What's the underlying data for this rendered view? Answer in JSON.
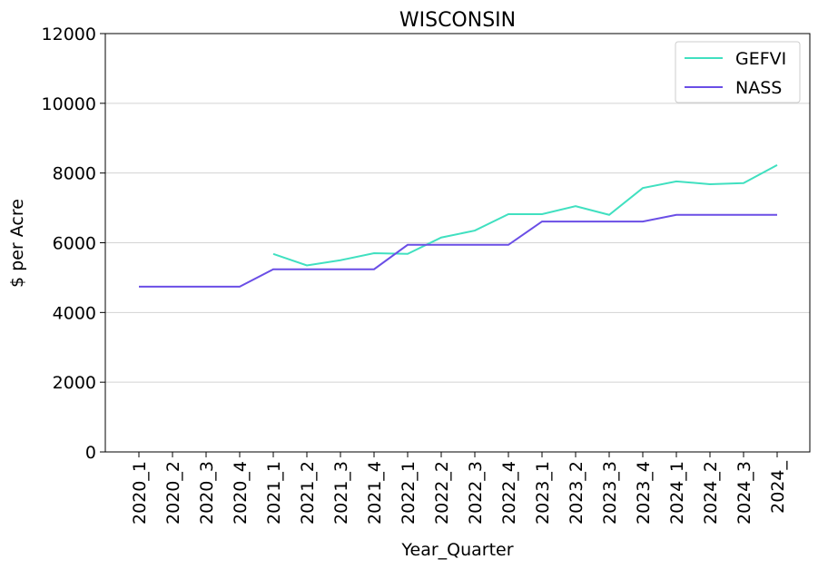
{
  "chart_data": {
    "type": "line",
    "title": "WISCONSIN",
    "x_label": "Year_Quarter",
    "y_label": "$ per Acre",
    "categories": [
      "2020_1",
      "2020_2",
      "2020_3",
      "2020_4",
      "2021_1",
      "2021_2",
      "2021_3",
      "2021_4",
      "2022_1",
      "2022_2",
      "2022_3",
      "2022_4",
      "2023_1",
      "2023_2",
      "2023_3",
      "2023_4",
      "2024_1",
      "2024_2",
      "2024_3",
      "2024_"
    ],
    "series": [
      {
        "name": "GEFVI",
        "color": "#40e0c0",
        "values": [
          null,
          null,
          null,
          null,
          5680,
          5350,
          5500,
          5700,
          5680,
          6150,
          6350,
          6820,
          6820,
          7050,
          6800,
          7570,
          7760,
          7680,
          7710,
          8230
        ]
      },
      {
        "name": "NASS",
        "color": "#6a4ee6",
        "values": [
          4740,
          4740,
          4740,
          4740,
          5240,
          5240,
          5240,
          5240,
          5940,
          5940,
          5940,
          5940,
          6610,
          6610,
          6610,
          6610,
          6800,
          6800,
          6800,
          6800
        ]
      }
    ],
    "ylim": [
      0,
      12000
    ],
    "yticks": [
      0,
      2000,
      4000,
      6000,
      8000,
      10000,
      12000
    ],
    "grid": true,
    "legend": "upper right"
  }
}
